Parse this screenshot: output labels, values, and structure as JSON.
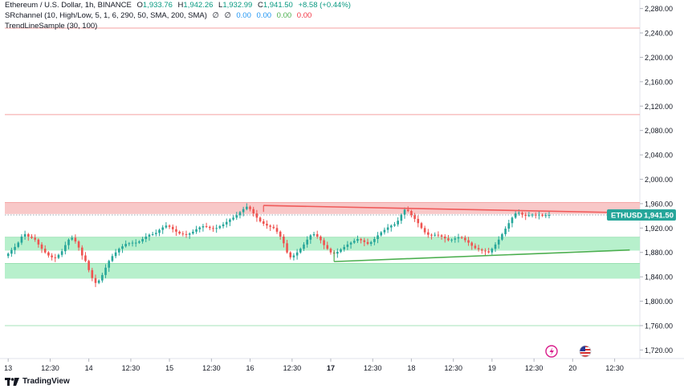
{
  "legend": {
    "symbol": "Ethereum / U.S. Dollar, 1h, BINANCE",
    "o_label": "O",
    "o_value": "1,933.76",
    "h_label": "H",
    "h_value": "1,942.26",
    "l_label": "L",
    "l_value": "1,932.99",
    "c_label": "C",
    "c_value": "1,941.50",
    "change": "+8.58 (+0.44%)",
    "indicator1_name": "SRchannel (10, High/Low, 5, 1, 6, 290, 50, SMA, 200, SMA)",
    "indicator1_values": [
      "∅",
      "∅",
      "0.00",
      "0.00",
      "0.00",
      "0.00"
    ],
    "indicator2_name": "TrendLineSample (30, 100)"
  },
  "brand": {
    "name": "TradingView"
  },
  "current_price": {
    "symbol": "ETHUSD",
    "price": "1,941.50",
    "value": 1941.5
  },
  "colors": {
    "up": "#26a69a",
    "down": "#ef5350",
    "resistance_zone": "#f8c8c8",
    "support_zone": "#b7f0cc",
    "h_red_line": "#f5a0a0",
    "h_green_line": "#a6e3b8",
    "trend_red": "#f05a5a",
    "trend_green": "#4caf50",
    "axis_text": "#131722",
    "price_tag_bg": "#26a69a"
  },
  "icons": [
    "lightning-icon",
    "us-flag-icon",
    "tradingview-logo-icon"
  ],
  "chart_data": {
    "type": "candlestick",
    "timeframe": "1h",
    "y_ticks": [
      2280,
      2240,
      2200,
      2160,
      2120,
      2080,
      2040,
      2000,
      1960,
      1920,
      1880,
      1840,
      1800,
      1760,
      1720
    ],
    "y_tick_labels": [
      "2,280.00",
      "2,240.00",
      "2,200.00",
      "2,160.00",
      "2,120.00",
      "2,080.00",
      "2,040.00",
      "2,000.00",
      "1,960.00",
      "1,920.00",
      "1,880.00",
      "1,840.00",
      "1,800.00",
      "1,760.00",
      "1,720.00"
    ],
    "ylim": [
      1706,
      2294
    ],
    "x_ticks": [
      {
        "label": "13",
        "t": 0,
        "bold": false
      },
      {
        "label": "12:30",
        "t": 12.5,
        "bold": false
      },
      {
        "label": "14",
        "t": 24,
        "bold": false
      },
      {
        "label": "12:30",
        "t": 36.5,
        "bold": false
      },
      {
        "label": "15",
        "t": 48,
        "bold": false
      },
      {
        "label": "12:30",
        "t": 60.5,
        "bold": false
      },
      {
        "label": "16",
        "t": 72,
        "bold": false
      },
      {
        "label": "12:30",
        "t": 84.5,
        "bold": false
      },
      {
        "label": "17",
        "t": 96,
        "bold": true
      },
      {
        "label": "12:30",
        "t": 108.5,
        "bold": false
      },
      {
        "label": "18",
        "t": 120,
        "bold": false
      },
      {
        "label": "12:30",
        "t": 132.5,
        "bold": false
      },
      {
        "label": "19",
        "t": 144,
        "bold": false
      },
      {
        "label": "12:30",
        "t": 156.5,
        "bold": false
      },
      {
        "label": "20",
        "t": 168,
        "bold": false
      },
      {
        "label": "12:30",
        "t": 180.5,
        "bold": false
      }
    ],
    "xlim": [
      -1,
      188
    ],
    "horizontal_lines": [
      {
        "price": 2248,
        "kind": "red"
      },
      {
        "price": 2106,
        "kind": "red"
      },
      {
        "price": 1760,
        "kind": "green"
      }
    ],
    "zones": [
      {
        "from": 1943,
        "to": 1962,
        "kind": "resistance"
      },
      {
        "from": 1883,
        "to": 1905,
        "kind": "support"
      },
      {
        "from": 1837,
        "to": 1862,
        "kind": "support"
      }
    ],
    "trend_lines": [
      {
        "t1": 76,
        "p1": 1957,
        "t2": 185,
        "p2": 1945,
        "kind": "red"
      },
      {
        "t1": 97,
        "p1": 1865,
        "t2": 185,
        "p2": 1884,
        "kind": "green"
      }
    ],
    "ohlc_closes": [
      1878,
      1884,
      1889,
      1896,
      1906,
      1910,
      1906,
      1904,
      1901,
      1893,
      1886,
      1880,
      1875,
      1872,
      1871,
      1876,
      1882,
      1892,
      1901,
      1904,
      1898,
      1888,
      1875,
      1866,
      1851,
      1838,
      1830,
      1834,
      1843,
      1855,
      1866,
      1874,
      1880,
      1886,
      1890,
      1894,
      1895,
      1896,
      1896,
      1898,
      1902,
      1906,
      1909,
      1910,
      1912,
      1917,
      1921,
      1924,
      1922,
      1918,
      1914,
      1911,
      1910,
      1909,
      1911,
      1914,
      1918,
      1921,
      1923,
      1922,
      1920,
      1919,
      1920,
      1923,
      1926,
      1930,
      1934,
      1937,
      1941,
      1946,
      1951,
      1955,
      1951,
      1944,
      1937,
      1931,
      1927,
      1924,
      1922,
      1920,
      1914,
      1906,
      1895,
      1880,
      1872,
      1875,
      1880,
      1886,
      1893,
      1901,
      1908,
      1910,
      1906,
      1900,
      1892,
      1886,
      1880,
      1878,
      1881,
      1885,
      1889,
      1893,
      1896,
      1899,
      1902,
      1900,
      1897,
      1894,
      1897,
      1902,
      1908,
      1913,
      1917,
      1921,
      1924,
      1926,
      1932,
      1942,
      1950,
      1948,
      1941,
      1935,
      1928,
      1920,
      1913,
      1909,
      1908,
      1909,
      1908,
      1906,
      1903,
      1900,
      1901,
      1903,
      1905,
      1904,
      1900,
      1896,
      1891,
      1887,
      1885,
      1883,
      1882,
      1880,
      1886,
      1893,
      1901,
      1910,
      1919,
      1928,
      1937,
      1944,
      1945,
      1942,
      1940,
      1941,
      1942,
      1941,
      1942,
      1940,
      1941,
      1941.5
    ]
  }
}
